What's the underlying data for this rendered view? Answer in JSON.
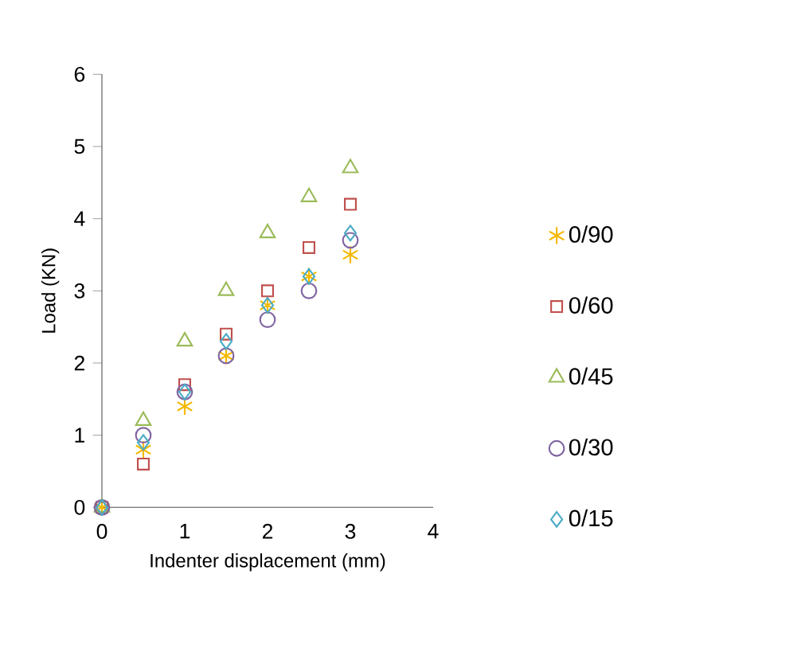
{
  "chart_data": {
    "type": "scatter",
    "xlabel": "Indenter displacement (mm)",
    "ylabel": "Load (KN)",
    "x": [
      0,
      0.5,
      1,
      1.5,
      2,
      2.5,
      3
    ],
    "xlim": [
      0,
      4
    ],
    "xticks": [
      0,
      1,
      2,
      3,
      4
    ],
    "ylim": [
      0,
      6
    ],
    "yticks": [
      0,
      1,
      2,
      3,
      4,
      5,
      6
    ],
    "legend": "right",
    "series": [
      {
        "name": "0/90",
        "color": "#f5b800",
        "marker": "cross",
        "values": [
          0,
          0.8,
          1.4,
          2.1,
          2.8,
          3.2,
          3.5
        ]
      },
      {
        "name": "0/60",
        "color": "#c0504d",
        "marker": "square",
        "values": [
          0,
          0.6,
          1.7,
          2.4,
          3.0,
          3.6,
          4.2
        ]
      },
      {
        "name": "0/45",
        "color": "#9bbb59",
        "marker": "triangle",
        "values": [
          0,
          1.2,
          2.3,
          3.0,
          3.8,
          4.3,
          4.7
        ]
      },
      {
        "name": "0/30",
        "color": "#8064a2",
        "marker": "circle",
        "values": [
          0,
          1.0,
          1.6,
          2.1,
          2.6,
          3.0,
          3.7
        ]
      },
      {
        "name": "0/15",
        "color": "#4bacc6",
        "marker": "diamond",
        "values": [
          0,
          0.9,
          1.6,
          2.3,
          2.8,
          3.2,
          3.8
        ]
      }
    ]
  }
}
